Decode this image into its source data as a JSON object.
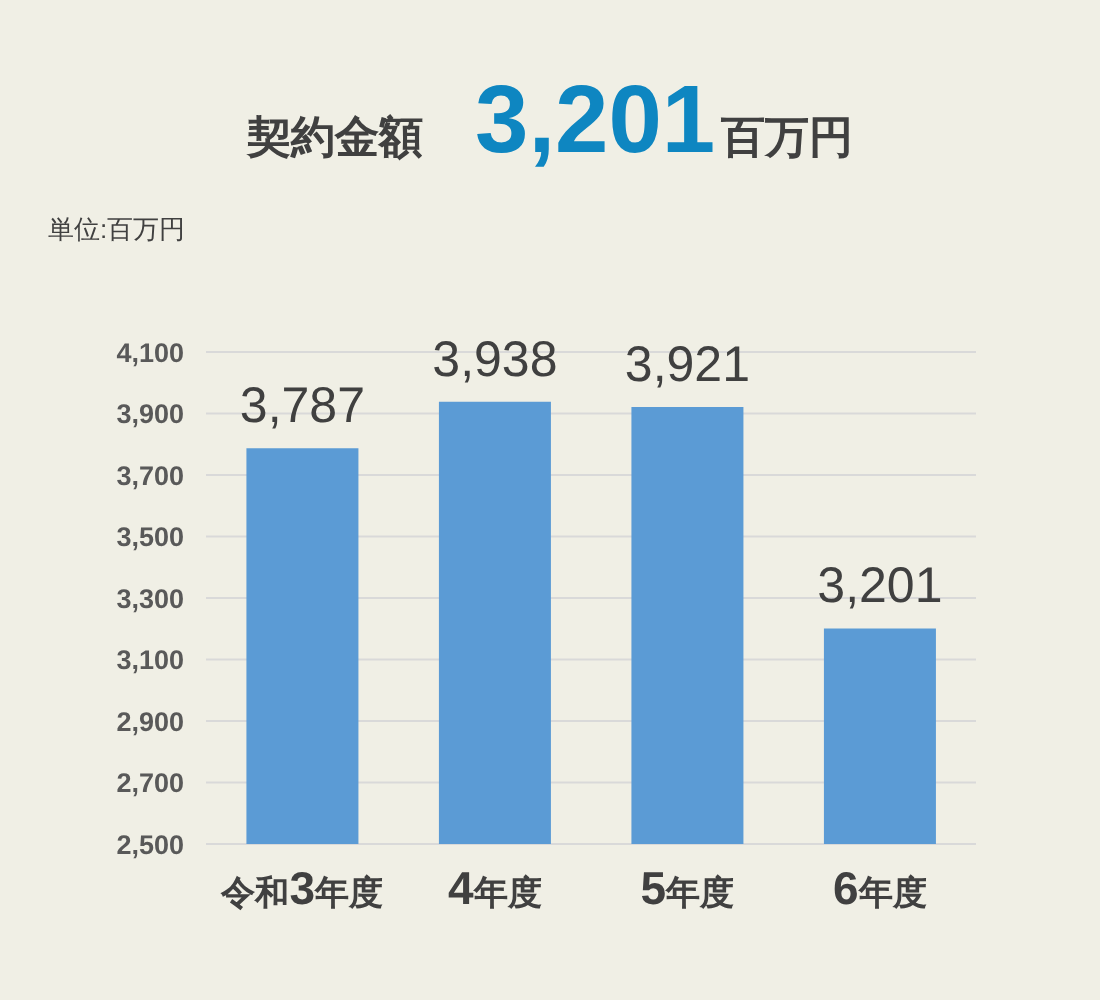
{
  "chart_data": {
    "type": "bar",
    "title": "契約金額 3,201百万円",
    "subtitle": "単位:百万円",
    "categories": [
      "令和3年度",
      "4年度",
      "5年度",
      "6年度"
    ],
    "values": [
      3787,
      3938,
      3921,
      3201
    ],
    "color": "#5b9bd5",
    "value_labels": [
      "3,787",
      "3,938",
      "3,921",
      "3,201"
    ],
    "ylim": [
      2500,
      4100
    ],
    "yticks": [
      {
        "value": 2500,
        "label": "2,500"
      },
      {
        "value": 2700,
        "label": "2,700"
      },
      {
        "value": 2900,
        "label": "2,900"
      },
      {
        "value": 3100,
        "label": "3,100"
      },
      {
        "value": 3300,
        "label": "3,300"
      },
      {
        "value": 3500,
        "label": "3,500"
      },
      {
        "value": 3700,
        "label": "3,700"
      },
      {
        "value": 3900,
        "label": "3,900"
      },
      {
        "value": 4100,
        "label": "4,100"
      }
    ],
    "grid": "y"
  }
}
